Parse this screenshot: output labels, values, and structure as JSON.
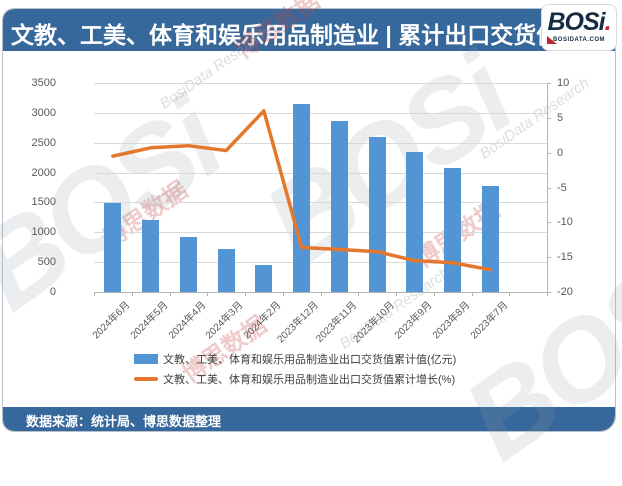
{
  "header": {
    "title": "文教、工美、体育和娱乐用品制造业 | 累计出口交货值"
  },
  "logo": {
    "name": "BOSi",
    "domain": "BOSIDATA.COM"
  },
  "footer": {
    "source_label": "数据来源：统计局、博思数据整理"
  },
  "watermark": {
    "brand_large": "BOSi",
    "brand_cn": "博思数据",
    "brand_en": "BosiData Research"
  },
  "colors": {
    "header_blue": "#37689b",
    "bar_blue": "#5294d4",
    "line_orange": "#e4772c",
    "gridline": "#d9d9d9",
    "axis_text": "#595959"
  },
  "chart_data": {
    "type": "combo (bar + line)",
    "categories": [
      "2024年6月",
      "2024年5月",
      "2024年4月",
      "2024年3月",
      "2024年2月",
      "2023年12月",
      "2023年11月",
      "2023年10月",
      "2023年9月",
      "2023年8月",
      "2023年7月"
    ],
    "series": [
      {
        "name": "文教、工美、体育和娱乐用品制造业出口交货值累计值(亿元)",
        "type": "bar",
        "axis": "left",
        "color": "#5294d4",
        "values": [
          1490,
          1205,
          920,
          715,
          445,
          3145,
          2870,
          2600,
          2340,
          2080,
          1770
        ]
      },
      {
        "name": "文教、工美、体育和娱乐用品制造业出口交货值累计增长(%)",
        "type": "line",
        "axis": "right",
        "color": "#e4772c",
        "values": [
          -0.5,
          0.7,
          1.0,
          0.3,
          6.0,
          -13.6,
          -13.9,
          -14.2,
          -15.5,
          -15.8,
          -16.8
        ]
      }
    ],
    "left_axis": {
      "min": 0,
      "max": 3500,
      "step": 500,
      "ticks": [
        3500,
        3000,
        2500,
        2000,
        1500,
        1000,
        500,
        0
      ]
    },
    "right_axis": {
      "min": -20,
      "max": 10,
      "step": 5,
      "ticks": [
        10,
        5,
        0,
        -5,
        -10,
        -15,
        -20
      ]
    },
    "grid": true,
    "legend_position": "bottom"
  }
}
